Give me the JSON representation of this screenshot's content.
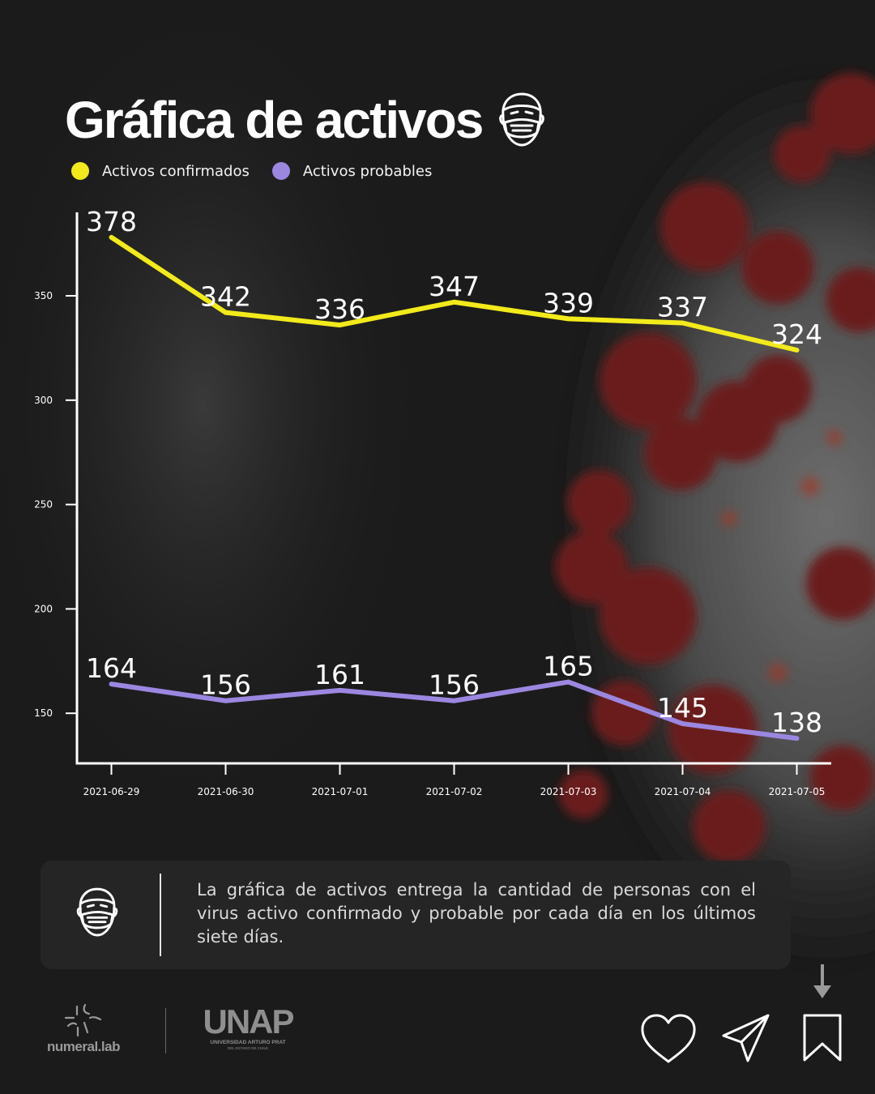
{
  "header": {
    "title": "Gráfica de activos",
    "title_icon": "face-mask-icon"
  },
  "legend": [
    {
      "label": "Activos confirmados",
      "color": "#f2ea1b"
    },
    {
      "label": "Activos probables",
      "color": "#9b87e0"
    }
  ],
  "chart_data": {
    "type": "line",
    "categories": [
      "2021-06-29",
      "2021-06-30",
      "2021-07-01",
      "2021-07-02",
      "2021-07-03",
      "2021-07-04",
      "2021-07-05"
    ],
    "series": [
      {
        "name": "Activos confirmados",
        "color": "#f2ea1b",
        "values": [
          378,
          342,
          336,
          347,
          339,
          337,
          324
        ]
      },
      {
        "name": "Activos probables",
        "color": "#9b87e0",
        "values": [
          164,
          156,
          161,
          156,
          165,
          145,
          138
        ]
      }
    ],
    "yticks": [
      150,
      200,
      250,
      300,
      350
    ],
    "ylim": [
      126,
      390
    ],
    "grid": false,
    "legend_position": "top-left"
  },
  "info": {
    "icon": "face-mask-icon",
    "text": "La gráfica de activos entrega la cantidad de personas con el virus activo confirmado y probable por cada día en los últimos siete días."
  },
  "footer": {
    "numeral_logo_text": "numeral.lab",
    "unap_logo_text": "UNAP",
    "unap_subtitle": "UNIVERSIDAD ARTURO PRAT",
    "unap_subtitle2": "DEL ESTADO DE CHILE",
    "actions": [
      "heart-icon",
      "send-icon",
      "bookmark-icon",
      "arrow-down-icon"
    ]
  }
}
